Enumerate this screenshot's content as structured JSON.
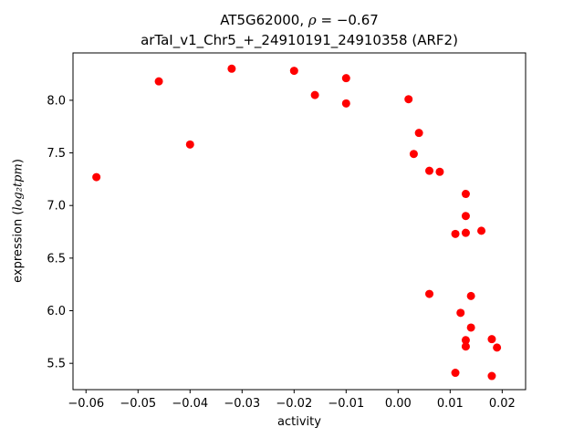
{
  "figure": {
    "title_line1_gene": "AT5G62000, ",
    "title_line1_rho": "ρ",
    "title_line1_value": " = −0.67",
    "title_line2": "arTaI_v1_Chr5_+_24910191_24910358 (ARF2)",
    "xlabel": "activity",
    "ylabel_prefix": "expression (",
    "ylabel_math": "log₂tpm",
    "ylabel_suffix": ")"
  },
  "chart_data": {
    "type": "scatter",
    "title": "AT5G62000, ρ = −0.67 — arTaI_v1_Chr5_+_24910191_24910358 (ARF2)",
    "xlabel": "activity",
    "ylabel": "expression (log2tpm)",
    "xlim": [
      -0.0625,
      0.0245
    ],
    "ylim": [
      5.25,
      8.45
    ],
    "xticks": [
      -0.06,
      -0.05,
      -0.04,
      -0.03,
      -0.02,
      -0.01,
      0.0,
      0.01,
      0.02
    ],
    "xtick_labels": [
      "−0.06",
      "−0.05",
      "−0.04",
      "−0.03",
      "−0.02",
      "−0.01",
      "0.00",
      "0.01",
      "0.02"
    ],
    "yticks": [
      5.5,
      6.0,
      6.5,
      7.0,
      7.5,
      8.0
    ],
    "ytick_labels": [
      "5.5",
      "6.0",
      "6.5",
      "7.0",
      "7.5",
      "8.0"
    ],
    "grid": false,
    "legend": null,
    "marker_color": "#ff0000",
    "marker_radius": 4.5,
    "points": [
      [
        -0.058,
        7.27
      ],
      [
        -0.046,
        8.18
      ],
      [
        -0.04,
        7.58
      ],
      [
        -0.032,
        8.3
      ],
      [
        -0.02,
        8.28
      ],
      [
        -0.016,
        8.05
      ],
      [
        -0.01,
        8.21
      ],
      [
        -0.01,
        7.97
      ],
      [
        0.002,
        8.01
      ],
      [
        0.004,
        7.69
      ],
      [
        0.003,
        7.49
      ],
      [
        0.006,
        7.33
      ],
      [
        0.008,
        7.32
      ],
      [
        0.006,
        6.16
      ],
      [
        0.013,
        7.11
      ],
      [
        0.013,
        6.9
      ],
      [
        0.011,
        6.73
      ],
      [
        0.013,
        6.74
      ],
      [
        0.016,
        6.76
      ],
      [
        0.014,
        6.14
      ],
      [
        0.012,
        5.98
      ],
      [
        0.014,
        5.84
      ],
      [
        0.013,
        5.72
      ],
      [
        0.013,
        5.66
      ],
      [
        0.018,
        5.73
      ],
      [
        0.019,
        5.65
      ],
      [
        0.011,
        5.41
      ],
      [
        0.018,
        5.38
      ]
    ]
  }
}
